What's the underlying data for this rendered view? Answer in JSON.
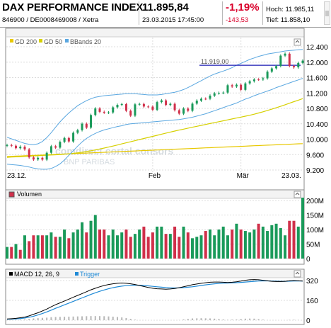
{
  "header": {
    "title": "DAX PERFORMANCE INDEX",
    "ids": "846900 / DE0008469008 / Xetra",
    "price": "11.895,84",
    "datetime": "23.03.2015 17:45:00",
    "change_pct": "-1,19%",
    "change_abs": "-143,53",
    "high": "Hoch: 11.985,11",
    "low": "Tief: 11.858,10"
  },
  "colors": {
    "ma200": "#e8c800",
    "ma50": "#d6d000",
    "bbands": "#5aa7e0",
    "candle_up": "#1a9a5a",
    "candle_down": "#d0304a",
    "vol_up": "#1a9a5a",
    "vol_down": "#d0304a",
    "macd": "#000000",
    "trigger": "#1f8ad6",
    "hist": "#b8b8b8",
    "hline": "#1a1ab4",
    "panel_header_bg": "#f3f3f3",
    "grid": "#dcdcdc"
  },
  "watermark": {
    "line1": "comdirect cortal consors",
    "line2": "BNP PARIBAS"
  },
  "chart_data": [
    {
      "type": "candlestick",
      "legend": [
        {
          "name": "GD 200",
          "color": "#e8c800",
          "icon": "expand-icon"
        },
        {
          "name": "GD 50",
          "color": "#d6d000",
          "icon": "expand-icon"
        },
        {
          "name": "BBands 20",
          "color": "#5aa7e0",
          "icon": "expand-icon"
        }
      ],
      "x_ticks": [
        "23.12.",
        "Feb",
        "Mär",
        "23.03."
      ],
      "y_ticks": [
        "12.400",
        "12.000",
        "11.600",
        "11.200",
        "10.800",
        "10.400",
        "10.000",
        "9.600",
        "9.200"
      ],
      "ylim": [
        9200,
        12400
      ],
      "annotation": {
        "label": "11.919,00",
        "value": 11919
      },
      "close": [
        9848,
        9831,
        9765,
        9806,
        9736,
        9527,
        9473,
        9518,
        9469,
        9648,
        9817,
        9781,
        9931,
        10032,
        9941,
        10167,
        10235,
        10402,
        10299,
        10628,
        10798,
        10710,
        10689,
        10694,
        10828,
        10891,
        10912,
        10738,
        10611,
        10905,
        10915,
        10848,
        10846,
        10764,
        10963,
        11008,
        10889,
        10919,
        10753,
        10663,
        10795,
        10737,
        10923,
        11001,
        11051,
        11050,
        11131,
        11191,
        11202,
        11210,
        11401,
        11368,
        11414,
        11281,
        11449,
        11505,
        11551,
        11550,
        11580,
        11753,
        11839,
        11899,
        12169,
        12220,
        11900,
        11865,
        11980,
        12039
      ],
      "gd200": [
        9550,
        9555,
        9560,
        9565,
        9570,
        9575,
        9580,
        9585,
        9590,
        9595,
        9600,
        9605,
        9610,
        9615,
        9620,
        9625,
        9630,
        9635,
        9640,
        9645,
        9650,
        9655,
        9660,
        9665,
        9670,
        9675,
        9680,
        9685,
        9690,
        9695,
        9700,
        9705,
        9710,
        9715,
        9720,
        9725,
        9730,
        9735,
        9740,
        9745,
        9750,
        9755,
        9760,
        9765,
        9770,
        9775,
        9780,
        9785,
        9790,
        9795,
        9800,
        9805,
        9810,
        9815,
        9820,
        9825,
        9830,
        9835,
        9840,
        9845,
        9850,
        9855,
        9860,
        9865,
        9870,
        9875,
        9880,
        9885
      ],
      "gd50": [
        9530,
        9536,
        9542,
        9548,
        9554,
        9560,
        9566,
        9572,
        9578,
        9584,
        9590,
        9596,
        9602,
        9610,
        9620,
        9632,
        9646,
        9662,
        9680,
        9700,
        9722,
        9746,
        9770,
        9796,
        9822,
        9850,
        9878,
        9906,
        9934,
        9962,
        9990,
        10018,
        10046,
        10074,
        10102,
        10130,
        10158,
        10186,
        10212,
        10238,
        10262,
        10286,
        10310,
        10334,
        10358,
        10382,
        10406,
        10430,
        10454,
        10478,
        10502,
        10526,
        10550,
        10574,
        10598,
        10622,
        10650,
        10680,
        10712,
        10746,
        10780,
        10816,
        10854,
        10894,
        10934,
        10974,
        11014,
        11054
      ],
      "bb_upper": [
        10050,
        10010,
        9970,
        9930,
        9890,
        9870,
        9860,
        9880,
        9940,
        10040,
        10170,
        10310,
        10450,
        10570,
        10680,
        10780,
        10870,
        10940,
        11000,
        11050,
        11090,
        11110,
        11130,
        11140,
        11150,
        11160,
        11170,
        11180,
        11180,
        11180,
        11170,
        11160,
        11150,
        11150,
        11150,
        11160,
        11180,
        11200,
        11220,
        11250,
        11290,
        11340,
        11400,
        11460,
        11520,
        11580,
        11640,
        11690,
        11730,
        11770,
        11810,
        11860,
        11920,
        11970,
        12020,
        12070,
        12110,
        12150,
        12180,
        12210,
        12230,
        12250,
        12270,
        12290,
        12300,
        12310,
        12320,
        12330
      ],
      "bb_lower": [
        9350,
        9340,
        9330,
        9320,
        9300,
        9280,
        9250,
        9230,
        9220,
        9220,
        9240,
        9290,
        9360,
        9460,
        9580,
        9700,
        9820,
        9930,
        10020,
        10090,
        10150,
        10200,
        10240,
        10270,
        10300,
        10330,
        10350,
        10380,
        10400,
        10410,
        10420,
        10430,
        10440,
        10450,
        10460,
        10470,
        10480,
        10490,
        10500,
        10510,
        10530,
        10550,
        10570,
        10600,
        10630,
        10660,
        10700,
        10740,
        10780,
        10820,
        10860,
        10900,
        10940,
        10990,
        11040,
        11080,
        11130,
        11170,
        11210,
        11250,
        11290,
        11340,
        11380,
        11420,
        11460,
        11500,
        11540,
        11580
      ]
    },
    {
      "type": "bar",
      "title": "Volumen",
      "y_ticks": [
        "200M",
        "150M",
        "100M",
        "50M",
        "0"
      ],
      "ylim": [
        0,
        200000000
      ],
      "values": [
        40,
        40,
        50,
        30,
        80,
        60,
        80,
        80,
        80,
        80,
        90,
        75,
        75,
        100,
        70,
        90,
        100,
        125,
        90,
        130,
        150,
        100,
        100,
        80,
        100,
        80,
        90,
        100,
        75,
        85,
        100,
        110,
        75,
        90,
        110,
        110,
        85,
        85,
        110,
        75,
        110,
        90,
        70,
        75,
        80,
        95,
        100,
        80,
        100,
        110,
        80,
        100,
        120,
        100,
        95,
        90,
        100,
        120,
        110,
        95,
        115,
        120,
        105,
        80,
        130,
        130,
        110,
        220
      ],
      "values_unit": "M",
      "up": [
        1,
        0,
        1,
        0,
        1,
        0,
        0,
        1,
        0,
        1,
        1,
        0,
        1,
        1,
        0,
        1,
        1,
        1,
        0,
        1,
        1,
        0,
        0,
        1,
        1,
        1,
        1,
        0,
        0,
        1,
        1,
        0,
        0,
        0,
        1,
        1,
        0,
        1,
        0,
        0,
        1,
        0,
        1,
        1,
        1,
        0,
        1,
        1,
        1,
        1,
        1,
        0,
        1,
        0,
        1,
        1,
        1,
        0,
        1,
        1,
        1,
        1,
        1,
        1,
        0,
        0,
        1,
        1
      ]
    },
    {
      "type": "line",
      "legend": [
        {
          "name": "MACD 12, 26, 9",
          "color": "#000000"
        },
        {
          "name": "Trigger",
          "color": "#1f8ad6"
        }
      ],
      "y_ticks": [
        "320",
        "160",
        "0"
      ],
      "ylim": [
        0,
        320
      ],
      "macd": [
        10,
        12,
        15,
        20,
        25,
        35,
        48,
        60,
        75,
        90,
        108,
        125,
        140,
        155,
        170,
        185,
        200,
        215,
        230,
        245,
        258,
        270,
        280,
        288,
        294,
        298,
        300,
        298,
        294,
        288,
        280,
        272,
        264,
        258,
        254,
        252,
        250,
        252,
        256,
        262,
        270,
        278,
        286,
        292,
        298,
        302,
        306,
        308,
        308,
        306,
        304,
        306,
        310,
        316,
        322,
        326,
        328,
        326,
        322,
        318,
        314,
        312,
        312,
        314,
        318,
        320,
        318,
        316
      ],
      "trigger": [
        8,
        9,
        11,
        14,
        18,
        24,
        32,
        42,
        54,
        67,
        81,
        96,
        110,
        124,
        138,
        152,
        166,
        180,
        194,
        208,
        221,
        233,
        244,
        254,
        262,
        269,
        275,
        279,
        282,
        283,
        282,
        280,
        277,
        273,
        270,
        266,
        263,
        261,
        260,
        261,
        263,
        266,
        270,
        275,
        280,
        285,
        290,
        294,
        297,
        299,
        300,
        301,
        303,
        305,
        308,
        311,
        314,
        316,
        317,
        317,
        316,
        315,
        314,
        314,
        315,
        316,
        316,
        316
      ],
      "hist": [
        2,
        3,
        4,
        6,
        7,
        11,
        16,
        18,
        21,
        23,
        27,
        29,
        30,
        31,
        32,
        33,
        34,
        35,
        36,
        37,
        37,
        37,
        36,
        34,
        32,
        29,
        25,
        19,
        12,
        5,
        -2,
        -8,
        -13,
        -15,
        -16,
        -14,
        -13,
        -9,
        -4,
        1,
        7,
        12,
        16,
        17,
        18,
        17,
        16,
        14,
        11,
        7,
        4,
        5,
        7,
        11,
        14,
        15,
        14,
        10,
        5,
        1,
        -2,
        -3,
        -2,
        0,
        3,
        4,
        2,
        0
      ]
    }
  ]
}
